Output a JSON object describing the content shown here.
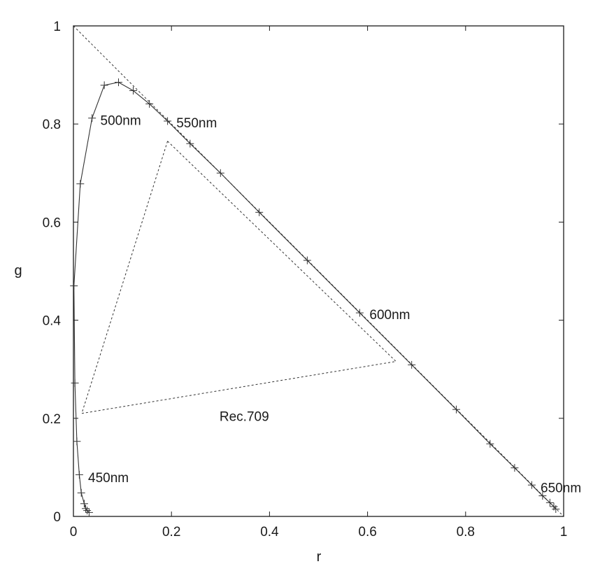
{
  "chart_data": {
    "type": "line",
    "xlabel": "r",
    "ylabel": "g",
    "xlim": [
      0,
      1
    ],
    "ylim": [
      0,
      1
    ],
    "x_ticks": [
      "0",
      "0.2",
      "0.4",
      "0.6",
      "0.8",
      "1"
    ],
    "y_ticks": [
      "0",
      "0.2",
      "0.4",
      "0.6",
      "0.8",
      "1"
    ],
    "grid": false,
    "legend": "none",
    "series": [
      {
        "kind": "locus",
        "style": "solid-with-plus-markers",
        "color": "#333333",
        "points": [
          [
            0.032,
            0.008
          ],
          [
            0.028,
            0.012
          ],
          [
            0.025,
            0.016
          ],
          [
            0.022,
            0.026
          ],
          [
            0.016,
            0.048
          ],
          [
            0.012,
            0.085
          ],
          [
            0.007,
            0.153
          ],
          [
            0.003,
            0.272
          ],
          [
            0.001,
            0.47
          ],
          [
            0.014,
            0.678
          ],
          [
            0.038,
            0.812
          ],
          [
            0.063,
            0.879
          ],
          [
            0.092,
            0.885
          ],
          [
            0.122,
            0.868
          ],
          [
            0.155,
            0.841
          ],
          [
            0.192,
            0.806
          ],
          [
            0.238,
            0.76
          ],
          [
            0.3,
            0.7
          ],
          [
            0.379,
            0.62
          ],
          [
            0.477,
            0.522
          ],
          [
            0.584,
            0.415
          ],
          [
            0.69,
            0.309
          ],
          [
            0.781,
            0.218
          ],
          [
            0.85,
            0.148
          ],
          [
            0.9,
            0.099
          ],
          [
            0.935,
            0.064
          ],
          [
            0.957,
            0.042
          ],
          [
            0.972,
            0.028
          ],
          [
            0.98,
            0.02
          ],
          [
            0.984,
            0.015
          ]
        ]
      },
      {
        "kind": "line",
        "style": "dashed",
        "color": "#333333",
        "points": [
          [
            0.0,
            1.0
          ],
          [
            1.0,
            0.0
          ]
        ]
      },
      {
        "kind": "triangle",
        "style": "dashed",
        "color": "#333333",
        "name": "Rec.709",
        "points": [
          [
            0.192,
            0.765
          ],
          [
            0.658,
            0.316
          ],
          [
            0.017,
            0.21
          ]
        ]
      }
    ],
    "annotations": [
      {
        "text": "450nm",
        "x": 0.03,
        "y": 0.08
      },
      {
        "text": "500nm",
        "x": 0.055,
        "y": 0.808
      },
      {
        "text": "550nm",
        "x": 0.21,
        "y": 0.803
      },
      {
        "text": "600nm",
        "x": 0.604,
        "y": 0.412
      },
      {
        "text": "650nm",
        "x": 0.953,
        "y": 0.059
      },
      {
        "text": "Rec.709",
        "x": 0.298,
        "y": 0.205
      }
    ]
  }
}
